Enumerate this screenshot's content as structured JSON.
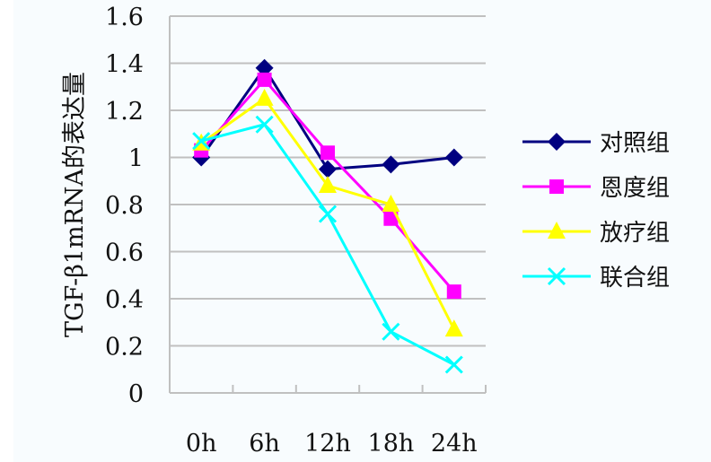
{
  "chart_data": {
    "type": "line",
    "title": "",
    "xlabel": "",
    "ylabel": "TGF-β1mRNA的表达量",
    "categories": [
      "0h",
      "6h",
      "12h",
      "18h",
      "24h"
    ],
    "ylim": [
      0,
      1.6
    ],
    "yticks": [
      0,
      0.2,
      0.4,
      0.6,
      0.8,
      1,
      1.2,
      1.4,
      1.6
    ],
    "ytick_labels": [
      "0",
      "0.2",
      "0.4",
      "0.6",
      "0.8",
      "1",
      "1.2",
      "1.4",
      "1.6"
    ],
    "grid": true,
    "legend_position": "right",
    "series": [
      {
        "name": "对照组",
        "color": "#000080",
        "marker": "diamond",
        "values": [
          1.0,
          1.38,
          0.95,
          0.97,
          1.0
        ]
      },
      {
        "name": "恩度组",
        "color": "#ff00ff",
        "marker": "square",
        "values": [
          1.03,
          1.33,
          1.02,
          0.74,
          0.43
        ]
      },
      {
        "name": "放疗组",
        "color": "#ffff00",
        "marker": "triangle",
        "values": [
          1.06,
          1.25,
          0.88,
          0.8,
          0.27
        ]
      },
      {
        "name": "联合组",
        "color": "#00ffff",
        "marker": "x",
        "values": [
          1.07,
          1.14,
          0.76,
          0.26,
          0.12
        ]
      }
    ]
  }
}
